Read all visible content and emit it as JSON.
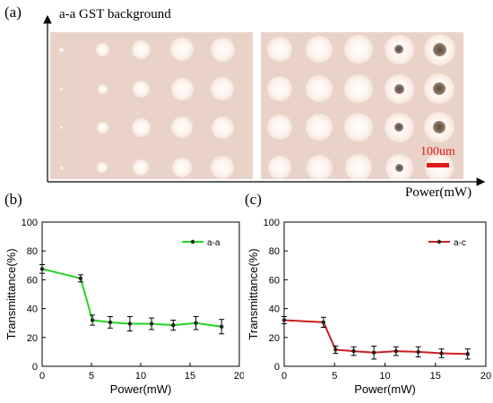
{
  "figure": {
    "panel_a_label": "(a)",
    "panel_b_label": "(b)",
    "panel_c_label": "(c)",
    "micrograph_title": "a-a GST background",
    "micrograph_axis_label": "Power(mW)",
    "scale_bar_label": "100um",
    "scale_bar_color": "#e11b1b",
    "micrograph_background": "#e9d3c9"
  },
  "chart_data": [
    {
      "type": "line",
      "panel": "(b)",
      "xlabel": "Power(mW)",
      "ylabel": "Transmittance(%)",
      "xlim": [
        0,
        20
      ],
      "ylim": [
        0,
        100
      ],
      "xticks": [
        0,
        5,
        10,
        15,
        20
      ],
      "yticks": [
        0,
        20,
        40,
        60,
        80,
        100
      ],
      "grid": false,
      "legend_position": "top-right",
      "series": [
        {
          "name": "a-a",
          "color": "#22d422",
          "x": [
            0,
            3.9,
            5.1,
            6.9,
            8.9,
            11.1,
            13.3,
            15.6,
            18.2
          ],
          "y": [
            67.5,
            61,
            32,
            30.5,
            29.5,
            29.5,
            28.5,
            30,
            27.5
          ],
          "err": [
            3,
            2.5,
            3.5,
            4,
            5,
            4,
            3.5,
            4.5,
            5
          ]
        }
      ]
    },
    {
      "type": "line",
      "panel": "(c)",
      "xlabel": "Power(mW)",
      "ylabel": "Transmittance(%)",
      "xlim": [
        0,
        20
      ],
      "ylim": [
        0,
        100
      ],
      "xticks": [
        0,
        5,
        10,
        15,
        20
      ],
      "yticks": [
        0,
        20,
        40,
        60,
        80,
        100
      ],
      "grid": false,
      "legend_position": "top-right",
      "series": [
        {
          "name": "a-c",
          "color": "#cc1f1f",
          "x": [
            0,
            3.9,
            5.1,
            6.9,
            8.9,
            11.1,
            13.3,
            15.6,
            18.2
          ],
          "y": [
            32,
            30.5,
            11.5,
            10.5,
            9.5,
            10.5,
            10,
            9,
            8.5
          ],
          "err": [
            2.5,
            3.5,
            2.5,
            3,
            4.5,
            3,
            3.5,
            3,
            3.5
          ]
        }
      ]
    }
  ]
}
